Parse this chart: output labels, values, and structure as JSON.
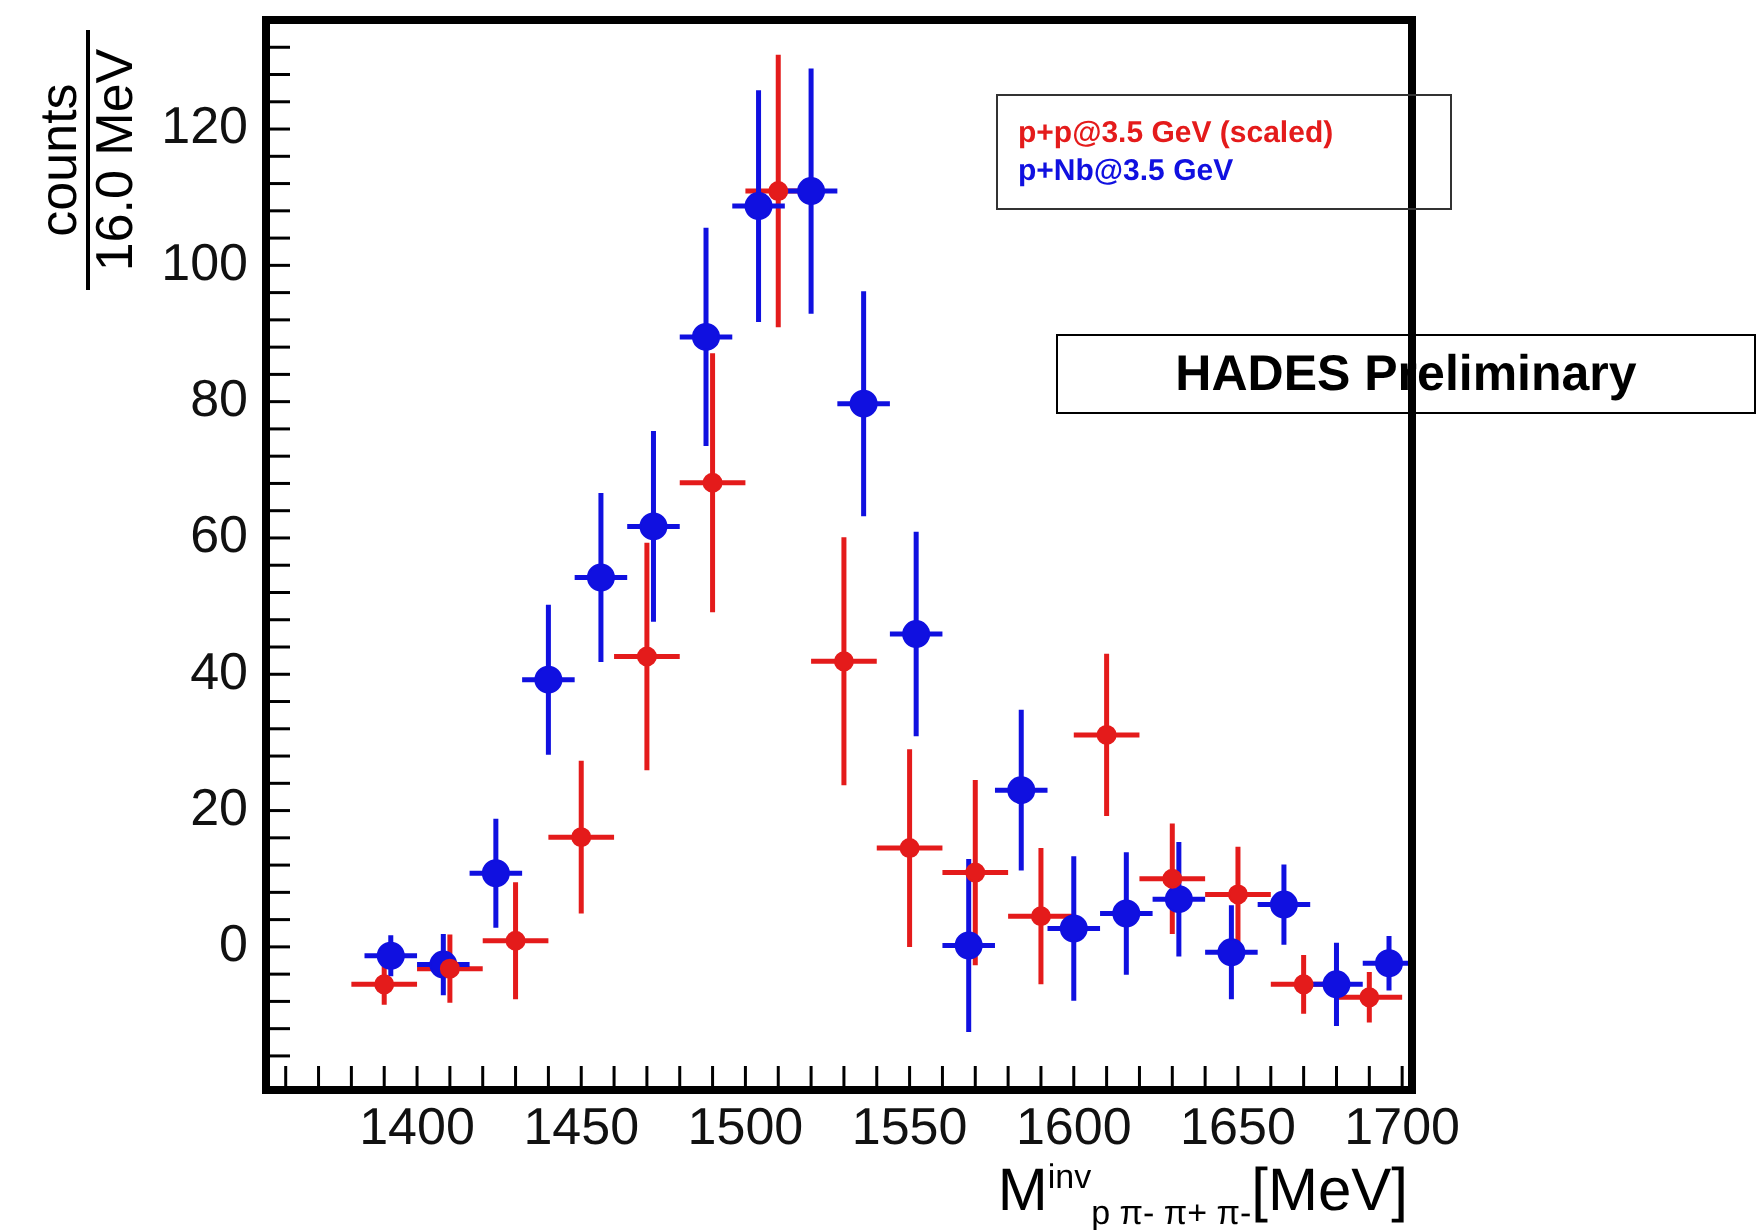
{
  "chart_data": {
    "type": "scatter",
    "xlabel": "M$^{inv}$$_{p π- π+ π-}$[MeV]",
    "ylabel": "counts\n16.0 MeV",
    "annotations": [
      "HADES Preliminary"
    ],
    "xlim": [
      1354,
      1703
    ],
    "ylim": [
      -21,
      136
    ],
    "xticks": [
      {
        "value": 1360,
        "label": null
      },
      {
        "value": 1370,
        "label": null
      },
      {
        "value": 1380,
        "label": null
      },
      {
        "value": 1390,
        "label": null
      },
      1400,
      {
        "value": 1410,
        "label": null
      },
      {
        "value": 1420,
        "label": null
      },
      {
        "value": 1430,
        "label": null
      },
      {
        "value": 1440,
        "label": null
      },
      1450,
      {
        "value": 1460,
        "label": null
      },
      {
        "value": 1470,
        "label": null
      },
      {
        "value": 1480,
        "label": null
      },
      {
        "value": 1490,
        "label": null
      },
      1500,
      {
        "value": 1510,
        "label": null
      },
      {
        "value": 1520,
        "label": null
      },
      {
        "value": 1530,
        "label": null
      },
      {
        "value": 1540,
        "label": null
      },
      1550,
      {
        "value": 1560,
        "label": null
      },
      {
        "value": 1570,
        "label": null
      },
      {
        "value": 1580,
        "label": null
      },
      {
        "value": 1590,
        "label": null
      },
      1600,
      {
        "value": 1610,
        "label": null
      },
      {
        "value": 1620,
        "label": null
      },
      {
        "value": 1630,
        "label": null
      },
      {
        "value": 1640,
        "label": null
      },
      1650,
      {
        "value": 1660,
        "label": null
      },
      {
        "value": 1670,
        "label": null
      },
      {
        "value": 1680,
        "label": null
      },
      {
        "value": 1690,
        "label": null
      },
      1700
    ],
    "yticks": [
      {
        "value": -16,
        "label": null
      },
      {
        "value": -12,
        "label": null
      },
      {
        "value": -8,
        "label": null
      },
      {
        "value": -4,
        "label": null
      },
      0,
      {
        "value": 4,
        "label": null
      },
      {
        "value": 8,
        "label": null
      },
      {
        "value": 12,
        "label": null
      },
      {
        "value": 16,
        "label": null
      },
      20,
      {
        "value": 24,
        "label": null
      },
      {
        "value": 28,
        "label": null
      },
      {
        "value": 32,
        "label": null
      },
      {
        "value": 36,
        "label": null
      },
      40,
      {
        "value": 44,
        "label": null
      },
      {
        "value": 48,
        "label": null
      },
      {
        "value": 52,
        "label": null
      },
      {
        "value": 56,
        "label": null
      },
      60,
      {
        "value": 64,
        "label": null
      },
      {
        "value": 68,
        "label": null
      },
      {
        "value": 72,
        "label": null
      },
      {
        "value": 76,
        "label": null
      },
      80,
      {
        "value": 84,
        "label": null
      },
      {
        "value": 88,
        "label": null
      },
      {
        "value": 92,
        "label": null
      },
      {
        "value": 96,
        "label": null
      },
      100,
      {
        "value": 104,
        "label": null
      },
      {
        "value": 108,
        "label": null
      },
      {
        "value": 112,
        "label": null
      },
      {
        "value": 116,
        "label": null
      },
      120,
      {
        "value": 124,
        "label": null
      },
      {
        "value": 128,
        "label": null
      },
      {
        "value": 132,
        "label": null
      }
    ],
    "grid": false,
    "marker": "circle",
    "series": [
      {
        "name": "p+p@3.5 GeV (scaled)",
        "color": "#e41b1b",
        "x": [
          1390,
          1410,
          1430,
          1450,
          1470,
          1490,
          1510,
          1530,
          1550,
          1570,
          1590,
          1610,
          1630,
          1650,
          1670,
          1690
        ],
        "values": [
          -5.5,
          -3.2,
          0.9,
          16.1,
          42.6,
          68.1,
          110.9,
          41.9,
          14.5,
          10.9,
          4.5,
          31.1,
          10.0,
          7.7,
          -5.5,
          -7.4
        ],
        "errors": [
          3,
          5,
          8.6,
          11.2,
          16.7,
          19,
          20,
          18.2,
          14.5,
          13.6,
          10,
          11.9,
          8.1,
          7,
          4.3,
          3.7
        ],
        "xerrors": [
          10,
          10,
          10,
          10,
          10,
          10,
          10,
          10,
          10,
          10,
          10,
          10,
          10,
          10,
          10,
          10
        ]
      },
      {
        "name": "p+Nb@3.5 GeV",
        "color": "#1010e0",
        "x": [
          1392,
          1408,
          1424,
          1440,
          1456,
          1472,
          1488,
          1504,
          1520,
          1536,
          1552,
          1568,
          1584,
          1600,
          1616,
          1632,
          1648,
          1664,
          1680,
          1696
        ],
        "values": [
          -1.3,
          -2.6,
          10.8,
          39.2,
          54.2,
          61.7,
          89.5,
          108.7,
          110.9,
          79.7,
          45.9,
          0.2,
          23.0,
          2.7,
          4.9,
          7.0,
          -0.8,
          6.2,
          -5.5,
          -2.4
        ],
        "errors": [
          3,
          4.5,
          8,
          11,
          12.4,
          14,
          16,
          17,
          18,
          16.5,
          15,
          12.7,
          11.8,
          10.6,
          9,
          8.4,
          6.9,
          5.9,
          6.1,
          4
        ],
        "xerrors": [
          8,
          8,
          8,
          8,
          8,
          8,
          8,
          8,
          8,
          8,
          8,
          8,
          8,
          8,
          8,
          8,
          8,
          8,
          8,
          8
        ]
      }
    ]
  }
}
